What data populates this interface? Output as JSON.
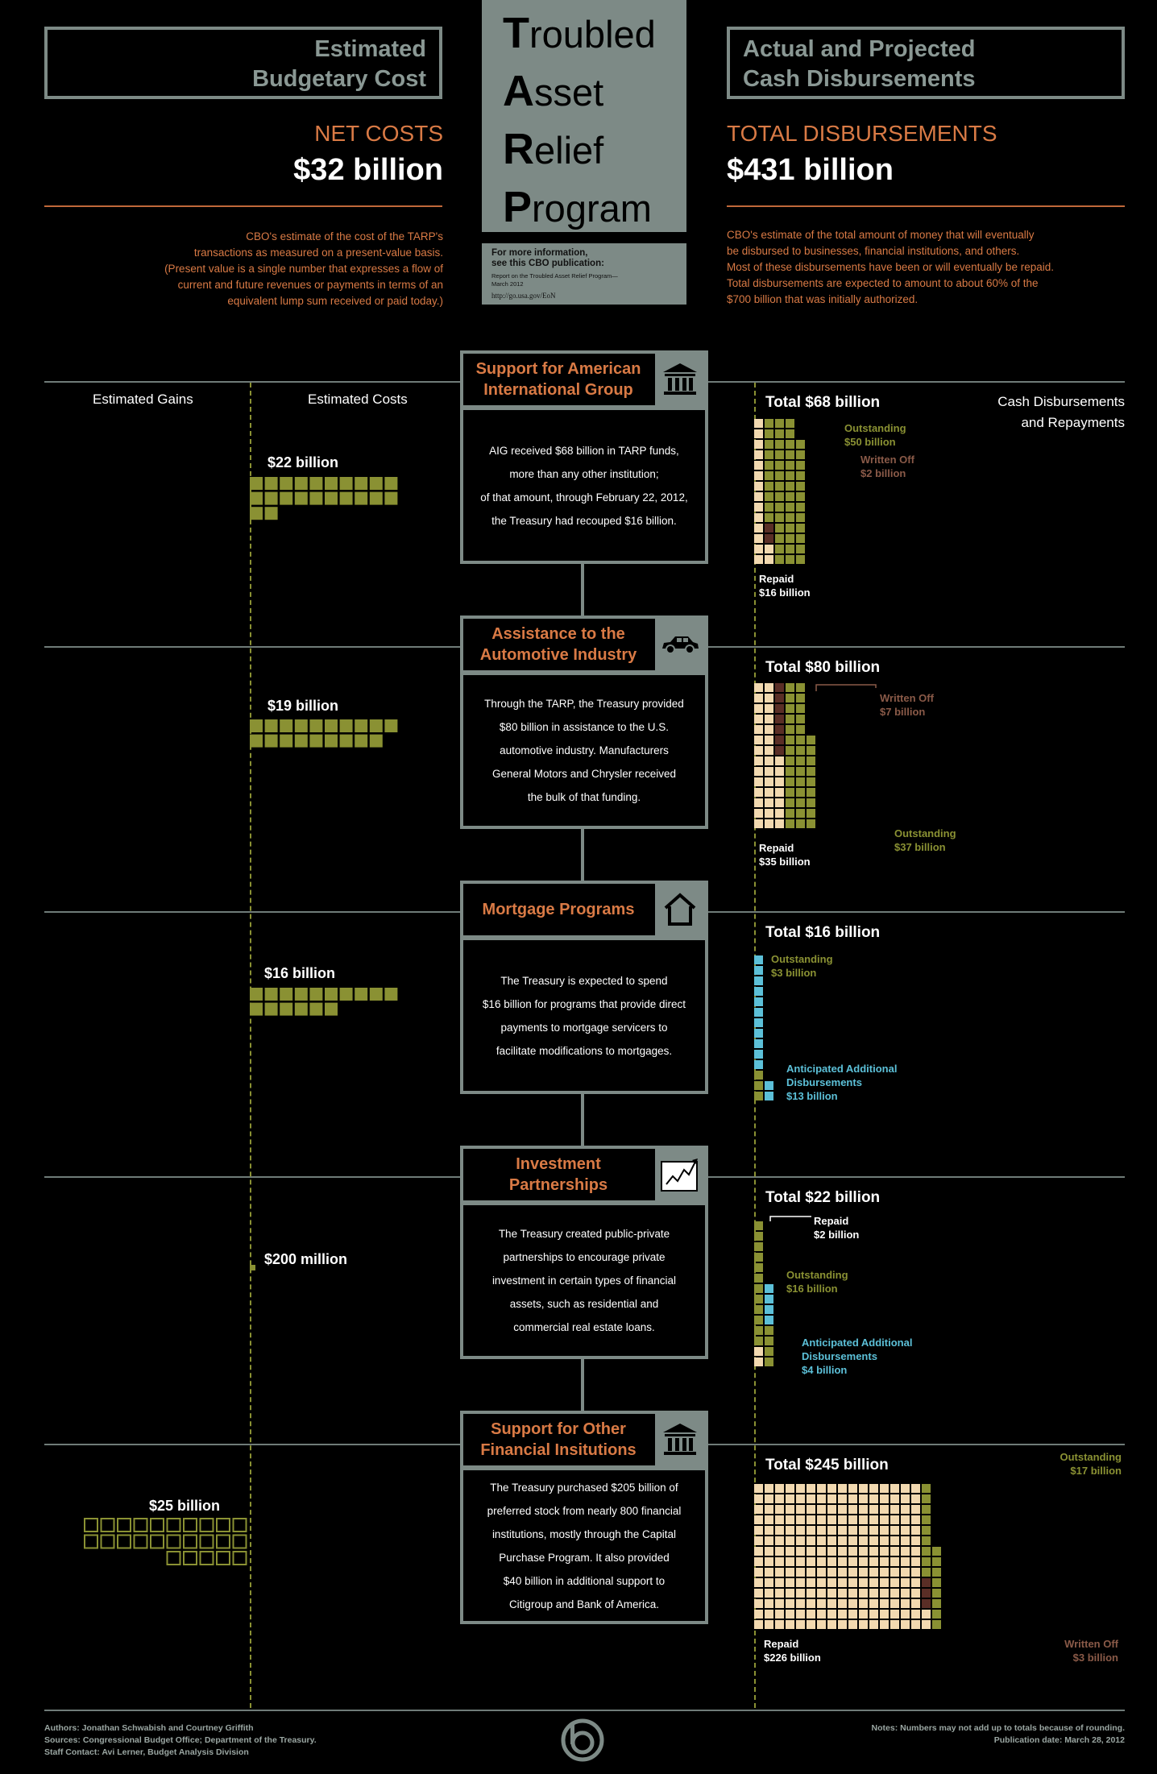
{
  "colors": {
    "olive": "#8a9133",
    "tan": "#f2d9b0",
    "brown": "#5a2e26",
    "blue": "#5cc0d8",
    "gray": "#7d8a86",
    "orange": "#d97a45"
  },
  "header": {
    "left_box": [
      "Estimated",
      "Budgetary Cost"
    ],
    "right_box": [
      "Actual and Projected",
      "Cash Disbursements"
    ],
    "title_letters": [
      {
        "initial": "T",
        "rest": "roubled"
      },
      {
        "initial": "A",
        "rest": "sset"
      },
      {
        "initial": "R",
        "rest": "elief"
      },
      {
        "initial": "P",
        "rest": "rogram"
      }
    ],
    "pub_box": {
      "line1": "For more information,",
      "line2": "see this CBO publication:",
      "line3": "Report on the Troubled Asset Relief Program—",
      "line4": "March 2012",
      "url": "http://go.usa.gov/EoN"
    },
    "net_costs_label": "NET COSTS",
    "net_costs_value": "$32 billion",
    "net_desc": [
      "CBO's estimate of the cost of the TARP's",
      "transactions as measured on a present-value basis.",
      "(Present value is a single number that expresses a flow of",
      "current and future revenues or payments in terms of an",
      "equivalent lump sum received or paid today.)"
    ],
    "total_disb_label": "TOTAL DISBURSEMENTS",
    "total_disb_value": "$431 billion",
    "disb_desc": [
      "CBO's estimate of the total amount of money that will eventually",
      "be disbursed to businesses, financial institutions, and others.",
      "Most of these disbursements have been or will eventually be repaid.",
      "Total disbursements are expected to amount to about 60% of the",
      "$700 billion that was initially authorized."
    ]
  },
  "columns": {
    "gains": "Estimated Gains",
    "costs": "Estimated Costs",
    "cash": [
      "Cash Disbursements",
      "and Repayments"
    ]
  },
  "sections": [
    {
      "title": [
        "Support for American",
        "International Group"
      ],
      "icon": "bank-icon",
      "body": [
        "AIG received $68 billion in TARP funds,",
        "more than any other institution;",
        "of that amount, through February 22, 2012,",
        "the Treasury had recouped $16 billion."
      ],
      "cost": {
        "label": "$22 billion",
        "value": 22
      },
      "total": "Total $68 billion",
      "labels": {
        "outstanding": [
          "Outstanding",
          "$50 billion"
        ],
        "written_off": [
          "Written Off",
          "$2 billion"
        ],
        "repaid": [
          "Repaid",
          "$16 billion"
        ]
      }
    },
    {
      "title": [
        "Assistance to the",
        "Automotive Industry"
      ],
      "icon": "car-icon",
      "body": [
        "Through the TARP, the Treasury provided",
        "$80 billion in assistance to the U.S.",
        "automotive industry. Manufacturers",
        "General Motors and Chrysler received",
        "the bulk of that funding."
      ],
      "cost": {
        "label": "$19 billion",
        "value": 19
      },
      "total": "Total $80 billion",
      "labels": {
        "written_off": [
          "Written Off",
          "$7 billion"
        ],
        "outstanding": [
          "Outstanding",
          "$37 billion"
        ],
        "repaid": [
          "Repaid",
          "$35 billion"
        ]
      }
    },
    {
      "title": [
        "Mortgage Programs"
      ],
      "icon": "house-icon",
      "body": [
        "The Treasury is expected to spend",
        "$16 billion for programs that provide direct",
        "payments to mortgage servicers to",
        "facilitate modifications to mortgages."
      ],
      "cost": {
        "label": "$16 billion",
        "value": 16
      },
      "total": "Total $16 billion",
      "labels": {
        "outstanding": [
          "Outstanding",
          "$3 billion"
        ],
        "anticipated": [
          "Anticipated Additional",
          "Disbursements",
          "$13 billion"
        ]
      }
    },
    {
      "title": [
        "Investment",
        "Partnerships"
      ],
      "icon": "chart-up-icon",
      "body": [
        "The Treasury created public-private",
        "partnerships to encourage private",
        "investment in certain types of financial",
        "assets, such as residential and",
        "commercial real estate loans."
      ],
      "cost": {
        "label": "$200 million",
        "value": 0.2
      },
      "total": "Total $22 billion",
      "labels": {
        "repaid": [
          "Repaid",
          "$2 billion"
        ],
        "outstanding": [
          "Outstanding",
          "$16 billion"
        ],
        "anticipated": [
          "Anticipated Additional",
          "Disbursements",
          "$4 billion"
        ]
      }
    },
    {
      "title": [
        "Support for Other",
        "Financial Insitutions"
      ],
      "icon": "bank-icon",
      "body": [
        "The Treasury purchased $205 billion of",
        "preferred stock from nearly 800 financial",
        "institutions, mostly through the Capital",
        "Purchase Program. It also provided",
        "$40 billion in additional support to",
        "Citigroup and Bank of America."
      ],
      "gain": {
        "label": "$25 billion",
        "value": 25
      },
      "total": "Total $245 billion",
      "labels": {
        "outstanding": [
          "Outstanding",
          "$17 billion"
        ],
        "repaid": [
          "Repaid",
          "$226 billion"
        ],
        "written_off": [
          "Written Off",
          "$3 billion"
        ]
      }
    }
  ],
  "chart_data": [
    {
      "type": "table",
      "title": "Support for American International Group",
      "categories": [
        "Repaid",
        "Written Off",
        "Outstanding"
      ],
      "values": [
        16,
        2,
        50
      ],
      "estimated_cost": 22
    },
    {
      "type": "table",
      "title": "Assistance to the Automotive Industry",
      "categories": [
        "Repaid",
        "Written Off",
        "Outstanding"
      ],
      "values": [
        35,
        7,
        37
      ],
      "estimated_cost": 19
    },
    {
      "type": "table",
      "title": "Mortgage Programs",
      "categories": [
        "Outstanding",
        "Anticipated Additional Disbursements"
      ],
      "values": [
        3,
        13
      ],
      "estimated_cost": 16
    },
    {
      "type": "table",
      "title": "Investment Partnerships",
      "categories": [
        "Repaid",
        "Outstanding",
        "Anticipated Additional Disbursements"
      ],
      "values": [
        2,
        16,
        4
      ],
      "estimated_cost": 0.2
    },
    {
      "type": "table",
      "title": "Support for Other Financial Insitutions",
      "categories": [
        "Repaid",
        "Written Off",
        "Outstanding"
      ],
      "values": [
        226,
        3,
        17
      ],
      "estimated_gain": 25
    }
  ],
  "footer": {
    "authors": "Authors: Jonathan Schwabish and Courtney Griffith",
    "sources": "Sources: Congressional Budget Office; Department of the Treasury.",
    "staff": "Staff Contact: Avi Lerner, Budget Analysis Division",
    "notes": "Notes: Numbers may not add up to totals because of rounding.",
    "pubdate": "Publication date: March 28, 2012"
  }
}
